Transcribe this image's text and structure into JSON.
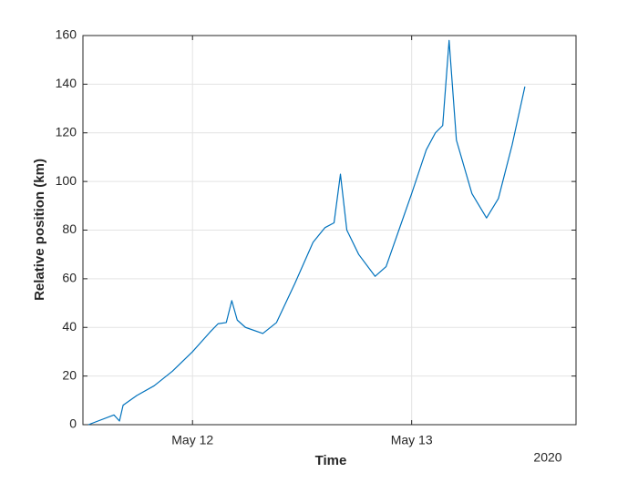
{
  "chart_data": {
    "type": "line",
    "x_label": "Time",
    "y_label": "Relative position (km)",
    "x_secondary_label": "2020",
    "x": [
      "2020-05-11T12:36",
      "2020-05-11T15:24",
      "2020-05-11T16:00",
      "2020-05-11T16:24",
      "2020-05-11T17:54",
      "2020-05-11T19:48",
      "2020-05-11T21:48",
      "2020-05-12T00:00",
      "2020-05-12T01:54",
      "2020-05-12T02:48",
      "2020-05-12T03:42",
      "2020-05-12T04:18",
      "2020-05-12T04:54",
      "2020-05-12T05:48",
      "2020-05-12T07:42",
      "2020-05-12T09:12",
      "2020-05-12T11:12",
      "2020-05-12T13:12",
      "2020-05-12T14:30",
      "2020-05-12T15:30",
      "2020-05-12T16:12",
      "2020-05-12T16:54",
      "2020-05-12T18:12",
      "2020-05-12T20:00",
      "2020-05-12T21:12",
      "2020-05-12T22:36",
      "2020-05-13T00:00",
      "2020-05-13T01:36",
      "2020-05-13T02:36",
      "2020-05-13T03:24",
      "2020-05-13T04:06",
      "2020-05-13T04:54",
      "2020-05-13T06:36",
      "2020-05-13T08:12",
      "2020-05-13T09:30",
      "2020-05-13T11:00",
      "2020-05-13T12:24"
    ],
    "series": [
      {
        "color": "#0072bd",
        "values": [
          0,
          4,
          1.5,
          8,
          12,
          16,
          22,
          30,
          38,
          41.5,
          42,
          51,
          43,
          40,
          37.5,
          42,
          58,
          75,
          81,
          83,
          103,
          80,
          70,
          61,
          65,
          80,
          95,
          113,
          120,
          123,
          158,
          117,
          95,
          85,
          93,
          115,
          139
        ]
      }
    ],
    "xlim": [
      "2020-05-11T12:00",
      "2020-05-13T18:00"
    ],
    "xticks": [
      {
        "value": "2020-05-12T00:00",
        "label": "May 12"
      },
      {
        "value": "2020-05-13T00:00",
        "label": "May 13"
      }
    ],
    "ylim": [
      0,
      160
    ],
    "yticks": [
      0,
      20,
      40,
      60,
      80,
      100,
      120,
      140,
      160
    ],
    "grid": true
  }
}
